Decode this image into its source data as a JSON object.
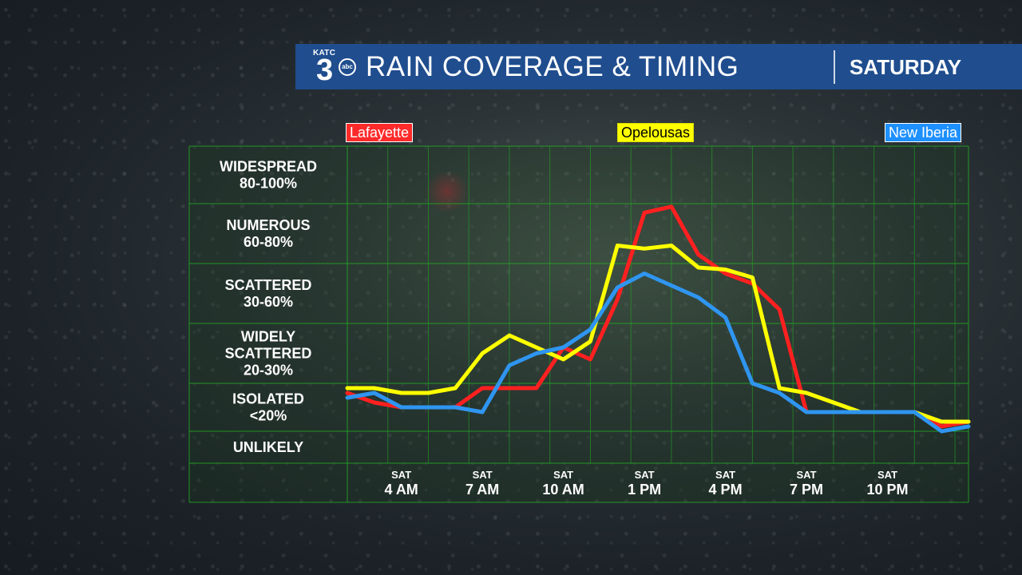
{
  "header": {
    "logo_text": "KATC",
    "logo_number": "3",
    "logo_network": "abc",
    "title": "RAIN COVERAGE & TIMING",
    "day": "SATURDAY"
  },
  "colors": {
    "banner": "#1f4d8e",
    "grid": "#22b022",
    "lafayette": "#ff2020",
    "opelousas": "#ffff00",
    "new_iberia": "#2f95f0"
  },
  "chart_data": {
    "type": "line",
    "title": "RAIN COVERAGE & TIMING",
    "y_categories": [
      {
        "name": "WIDESPREAD",
        "range": "80-100%"
      },
      {
        "name": "NUMEROUS",
        "range": "60-80%"
      },
      {
        "name": "SCATTERED",
        "range": "30-60%"
      },
      {
        "name": "WIDELY SCATTERED",
        "range": "20-30%"
      },
      {
        "name": "ISOLATED",
        "range": "<20%"
      },
      {
        "name": "UNLIKELY",
        "range": ""
      }
    ],
    "x_ticks": [
      {
        "day": "SAT",
        "time": "4 AM",
        "hour": 4
      },
      {
        "day": "SAT",
        "time": "7 AM",
        "hour": 7
      },
      {
        "day": "SAT",
        "time": "10 AM",
        "hour": 10
      },
      {
        "day": "SAT",
        "time": "1 PM",
        "hour": 13
      },
      {
        "day": "SAT",
        "time": "4 PM",
        "hour": 16
      },
      {
        "day": "SAT",
        "time": "7 PM",
        "hour": 19
      },
      {
        "day": "SAT",
        "time": "10 PM",
        "hour": 22
      }
    ],
    "x_range_hours": [
      2,
      25
    ],
    "y_scale_note": "piecewise: 0=UNLIKELY bottom, 10=ISOLATED/UNLIKELY line, 20, 30, 60, 80, 100",
    "series": [
      {
        "name": "Lafayette",
        "color": "#ff2020",
        "hours": [
          2,
          3,
          4,
          5,
          6,
          7,
          8,
          9,
          10,
          11,
          12,
          13,
          14,
          15,
          16,
          17,
          18,
          19,
          20,
          21,
          22,
          23,
          24,
          25
        ],
        "values": [
          18,
          16,
          15,
          15,
          15,
          19,
          19,
          19,
          26,
          24,
          42,
          77,
          79,
          63,
          55,
          50,
          37,
          14,
          14,
          14,
          14,
          14,
          11,
          12
        ]
      },
      {
        "name": "Opelousas",
        "color": "#ffff00",
        "hours": [
          2,
          3,
          4,
          5,
          6,
          7,
          8,
          9,
          10,
          11,
          12,
          13,
          14,
          15,
          16,
          17,
          18,
          19,
          20,
          21,
          22,
          23,
          24,
          25
        ],
        "values": [
          19,
          19,
          18,
          18,
          19,
          25,
          28,
          26,
          24,
          27,
          66,
          65,
          66,
          58,
          57,
          53,
          19,
          18,
          16,
          14,
          14,
          14,
          12,
          12
        ]
      },
      {
        "name": "New Iberia",
        "color": "#2f95f0",
        "hours": [
          2,
          3,
          4,
          5,
          6,
          7,
          8,
          9,
          10,
          11,
          12,
          13,
          14,
          15,
          16,
          17,
          18,
          19,
          20,
          21,
          22,
          23,
          24,
          25
        ],
        "values": [
          17,
          18,
          15,
          15,
          15,
          14,
          23,
          25,
          26,
          29,
          48,
          55,
          49,
          43,
          33,
          20,
          18,
          14,
          14,
          14,
          14,
          14,
          10,
          11
        ]
      }
    ],
    "legend": [
      "Lafayette",
      "Opelousas",
      "New Iberia"
    ],
    "grid": true
  }
}
